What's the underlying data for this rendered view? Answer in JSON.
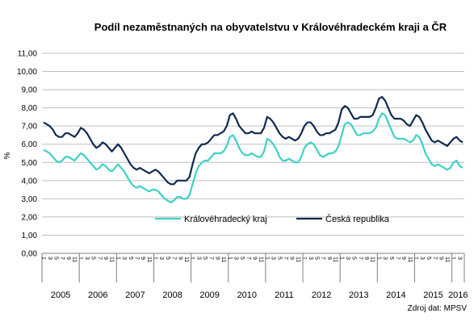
{
  "chart_data": {
    "type": "line",
    "title": "Podíl nezaměstnaných  na obyvatelstvu  v Královéhradeckém  kraji a ČR",
    "ylabel": "%",
    "xlabel": "",
    "ylim": [
      0,
      11
    ],
    "yticks": [
      "0,00",
      "1,00",
      "2,00",
      "3,00",
      "4,00",
      "5,00",
      "6,00",
      "7,00",
      "8,00",
      "9,00",
      "10,00",
      "11,00"
    ],
    "month_tick_labels": [
      "1",
      "3",
      "5",
      "7",
      "9",
      "11"
    ],
    "years": [
      "2005",
      "2006",
      "2007",
      "2008",
      "2009",
      "2010",
      "2011",
      "2012",
      "2013",
      "2014",
      "2015",
      "2016"
    ],
    "grid": true,
    "legend_position": "bottom-center inside plot",
    "source_note": "Zdroj dat: MPSV",
    "series": [
      {
        "name": "Královéhradecký kraj",
        "color": "#3fd1c6",
        "values": [
          5.7,
          5.6,
          5.5,
          5.3,
          5.1,
          5.0,
          5.1,
          5.3,
          5.3,
          5.2,
          5.1,
          5.3,
          5.5,
          5.4,
          5.2,
          5.0,
          4.8,
          4.6,
          4.7,
          4.9,
          4.8,
          4.6,
          4.5,
          4.7,
          4.9,
          4.7,
          4.5,
          4.2,
          3.9,
          3.7,
          3.6,
          3.7,
          3.6,
          3.5,
          3.4,
          3.5,
          3.5,
          3.4,
          3.2,
          3.0,
          2.9,
          2.8,
          2.9,
          3.1,
          3.1,
          3.0,
          3.0,
          3.2,
          3.8,
          4.4,
          4.8,
          5.0,
          5.1,
          5.1,
          5.3,
          5.5,
          5.5,
          5.5,
          5.6,
          5.9,
          6.4,
          6.5,
          6.2,
          5.8,
          5.5,
          5.4,
          5.4,
          5.5,
          5.4,
          5.3,
          5.3,
          5.6,
          6.3,
          6.2,
          6.0,
          5.7,
          5.3,
          5.1,
          5.1,
          5.2,
          5.1,
          5.0,
          5.0,
          5.3,
          5.8,
          6.0,
          6.1,
          6.0,
          5.7,
          5.4,
          5.3,
          5.4,
          5.5,
          5.5,
          5.6,
          5.9,
          6.5,
          7.1,
          7.2,
          7.1,
          6.8,
          6.5,
          6.5,
          6.6,
          6.6,
          6.6,
          6.7,
          6.9,
          7.4,
          7.7,
          7.6,
          7.2,
          6.8,
          6.4,
          6.3,
          6.3,
          6.3,
          6.2,
          6.1,
          6.2,
          6.5,
          6.4,
          6.0,
          5.5,
          5.2,
          4.9,
          4.8,
          4.9,
          4.8,
          4.7,
          4.6,
          4.7,
          5.0,
          5.1,
          4.8,
          4.7
        ]
      },
      {
        "name": "Česká republika",
        "color": "#0f2a4f",
        "values": [
          7.2,
          7.1,
          7.0,
          6.8,
          6.5,
          6.4,
          6.4,
          6.6,
          6.6,
          6.5,
          6.4,
          6.6,
          6.9,
          6.8,
          6.6,
          6.3,
          6.0,
          5.8,
          5.9,
          6.1,
          6.0,
          5.8,
          5.6,
          5.8,
          6.0,
          5.8,
          5.5,
          5.2,
          4.9,
          4.7,
          4.6,
          4.7,
          4.6,
          4.5,
          4.4,
          4.5,
          4.6,
          4.5,
          4.3,
          4.1,
          3.9,
          3.8,
          3.8,
          4.0,
          4.0,
          4.0,
          4.0,
          4.2,
          4.9,
          5.5,
          5.8,
          6.0,
          6.0,
          6.1,
          6.3,
          6.5,
          6.5,
          6.6,
          6.7,
          7.0,
          7.6,
          7.7,
          7.4,
          7.0,
          6.8,
          6.6,
          6.6,
          6.7,
          6.6,
          6.6,
          6.6,
          6.9,
          7.5,
          7.4,
          7.2,
          6.9,
          6.6,
          6.4,
          6.3,
          6.4,
          6.3,
          6.2,
          6.3,
          6.6,
          7.0,
          7.2,
          7.2,
          7.0,
          6.7,
          6.5,
          6.5,
          6.6,
          6.6,
          6.7,
          6.8,
          7.2,
          7.9,
          8.1,
          8.0,
          7.7,
          7.4,
          7.4,
          7.5,
          7.5,
          7.5,
          7.5,
          7.6,
          8.0,
          8.5,
          8.6,
          8.4,
          8.0,
          7.6,
          7.4,
          7.4,
          7.4,
          7.3,
          7.1,
          7.0,
          7.3,
          7.6,
          7.5,
          7.2,
          6.8,
          6.5,
          6.2,
          6.1,
          6.2,
          6.1,
          6.0,
          5.9,
          6.1,
          6.3,
          6.4,
          6.2,
          6.1
        ]
      }
    ]
  }
}
